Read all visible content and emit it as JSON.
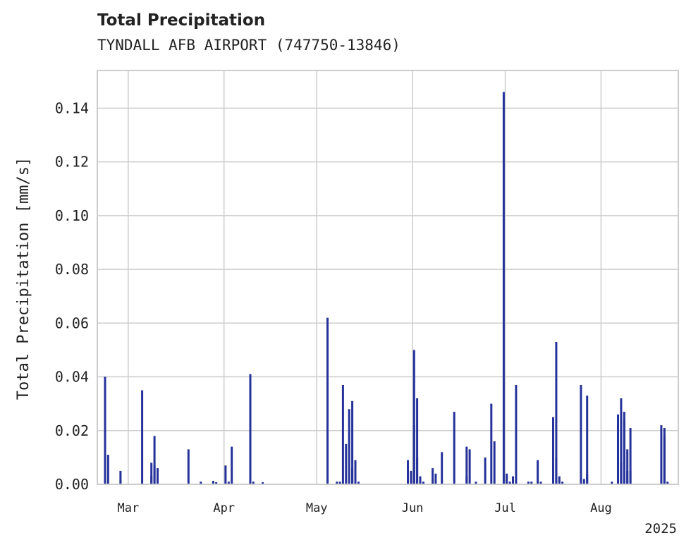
{
  "chart_data": {
    "type": "bar",
    "title": "Total Precipitation",
    "subtitle": "TYNDALL AFB AIRPORT (747750-13846)",
    "xlabel": "",
    "ylabel": "Total Precipitation [mm/s]",
    "ylim": [
      0,
      0.154
    ],
    "yticks": [
      "0.00",
      "0.02",
      "0.04",
      "0.06",
      "0.08",
      "0.10",
      "0.12",
      "0.14"
    ],
    "xlim": [
      "2025-02-19",
      "2025-08-26"
    ],
    "xticks": [
      {
        "date": "2025-03-01",
        "label": "Mar"
      },
      {
        "date": "2025-04-01",
        "label": "Apr"
      },
      {
        "date": "2025-05-01",
        "label": "May"
      },
      {
        "date": "2025-06-01",
        "label": "Jun"
      },
      {
        "date": "2025-07-01",
        "label": "Jul"
      },
      {
        "date": "2025-08-01",
        "label": "Aug"
      }
    ],
    "year_label": "2025",
    "grid": true,
    "color": "#25329a",
    "series": [
      {
        "name": "",
        "points": [
          [
            "2025-02-21",
            0.016
          ],
          [
            "2025-02-21",
            0.04
          ],
          [
            "2025-02-22",
            0.011
          ],
          [
            "2025-02-26",
            0.005
          ],
          [
            "2025-02-26",
            0.001
          ],
          [
            "2025-03-05",
            0.035
          ],
          [
            "2025-03-08",
            0.008
          ],
          [
            "2025-03-08",
            0.003
          ],
          [
            "2025-03-09",
            0.007
          ],
          [
            "2025-03-09",
            0.018
          ],
          [
            "2025-03-10",
            0.006
          ],
          [
            "2025-03-20",
            0.013
          ],
          [
            "2025-03-24",
            0.001
          ],
          [
            "2025-03-28",
            0.0013
          ],
          [
            "2025-03-29",
            0.0008
          ],
          [
            "2025-04-01",
            0.007
          ],
          [
            "2025-04-02",
            0.001
          ],
          [
            "2025-04-03",
            0.014
          ],
          [
            "2025-04-09",
            0.041
          ],
          [
            "2025-04-09",
            0.011
          ],
          [
            "2025-04-10",
            0.001
          ],
          [
            "2025-04-13",
            0.0008
          ],
          [
            "2025-05-04",
            0.021
          ],
          [
            "2025-05-04",
            0.062
          ],
          [
            "2025-05-07",
            0.001
          ],
          [
            "2025-05-08",
            0.001
          ],
          [
            "2025-05-09",
            0.037
          ],
          [
            "2025-05-10",
            0.015
          ],
          [
            "2025-05-11",
            0.028
          ],
          [
            "2025-05-12",
            0.006
          ],
          [
            "2025-05-12",
            0.031
          ],
          [
            "2025-05-13",
            0.009
          ],
          [
            "2025-05-14",
            0.001
          ],
          [
            "2025-05-30",
            0.009
          ],
          [
            "2025-05-31",
            0.005
          ],
          [
            "2025-06-01",
            0.05
          ],
          [
            "2025-06-01",
            0.022
          ],
          [
            "2025-06-02",
            0.01
          ],
          [
            "2025-06-02",
            0.032
          ],
          [
            "2025-06-03",
            0.003
          ],
          [
            "2025-06-04",
            0.001
          ],
          [
            "2025-06-07",
            0.006
          ],
          [
            "2025-06-08",
            0.004
          ],
          [
            "2025-06-10",
            0.012
          ],
          [
            "2025-06-14",
            0.027
          ],
          [
            "2025-06-18",
            0.014
          ],
          [
            "2025-06-18",
            0.003
          ],
          [
            "2025-06-19",
            0.013
          ],
          [
            "2025-06-21",
            0.001
          ],
          [
            "2025-06-24",
            0.01
          ],
          [
            "2025-06-26",
            0.03
          ],
          [
            "2025-06-27",
            0.016
          ],
          [
            "2025-07-04",
            0.037
          ],
          [
            "2025-06-30",
            0.146
          ],
          [
            "2025-07-01",
            0.004
          ],
          [
            "2025-07-02",
            0.001
          ],
          [
            "2025-07-03",
            0.003
          ],
          [
            "2025-07-08",
            0.001
          ],
          [
            "2025-07-09",
            0.001
          ],
          [
            "2025-07-11",
            0.009
          ],
          [
            "2025-07-12",
            0.001
          ],
          [
            "2025-07-16",
            0.025
          ],
          [
            "2025-07-17",
            0.01
          ],
          [
            "2025-07-17",
            0.053
          ],
          [
            "2025-07-18",
            0.003
          ],
          [
            "2025-07-19",
            0.001
          ],
          [
            "2025-07-25",
            0.037
          ],
          [
            "2025-07-26",
            0.002
          ],
          [
            "2025-07-27",
            0.004
          ],
          [
            "2025-07-27",
            0.033
          ],
          [
            "2025-08-04",
            0.001
          ],
          [
            "2025-08-06",
            0.026
          ],
          [
            "2025-08-07",
            0.032
          ],
          [
            "2025-08-07",
            0.008
          ],
          [
            "2025-08-08",
            0.027
          ],
          [
            "2025-08-08",
            0.024
          ],
          [
            "2025-08-09",
            0.013
          ],
          [
            "2025-08-09",
            0.005
          ],
          [
            "2025-08-10",
            0.021
          ],
          [
            "2025-08-10",
            0.005
          ],
          [
            "2025-08-20",
            0.022
          ],
          [
            "2025-08-21",
            0.021
          ],
          [
            "2025-08-21",
            0.018
          ],
          [
            "2025-08-22",
            0.001
          ]
        ]
      }
    ]
  }
}
